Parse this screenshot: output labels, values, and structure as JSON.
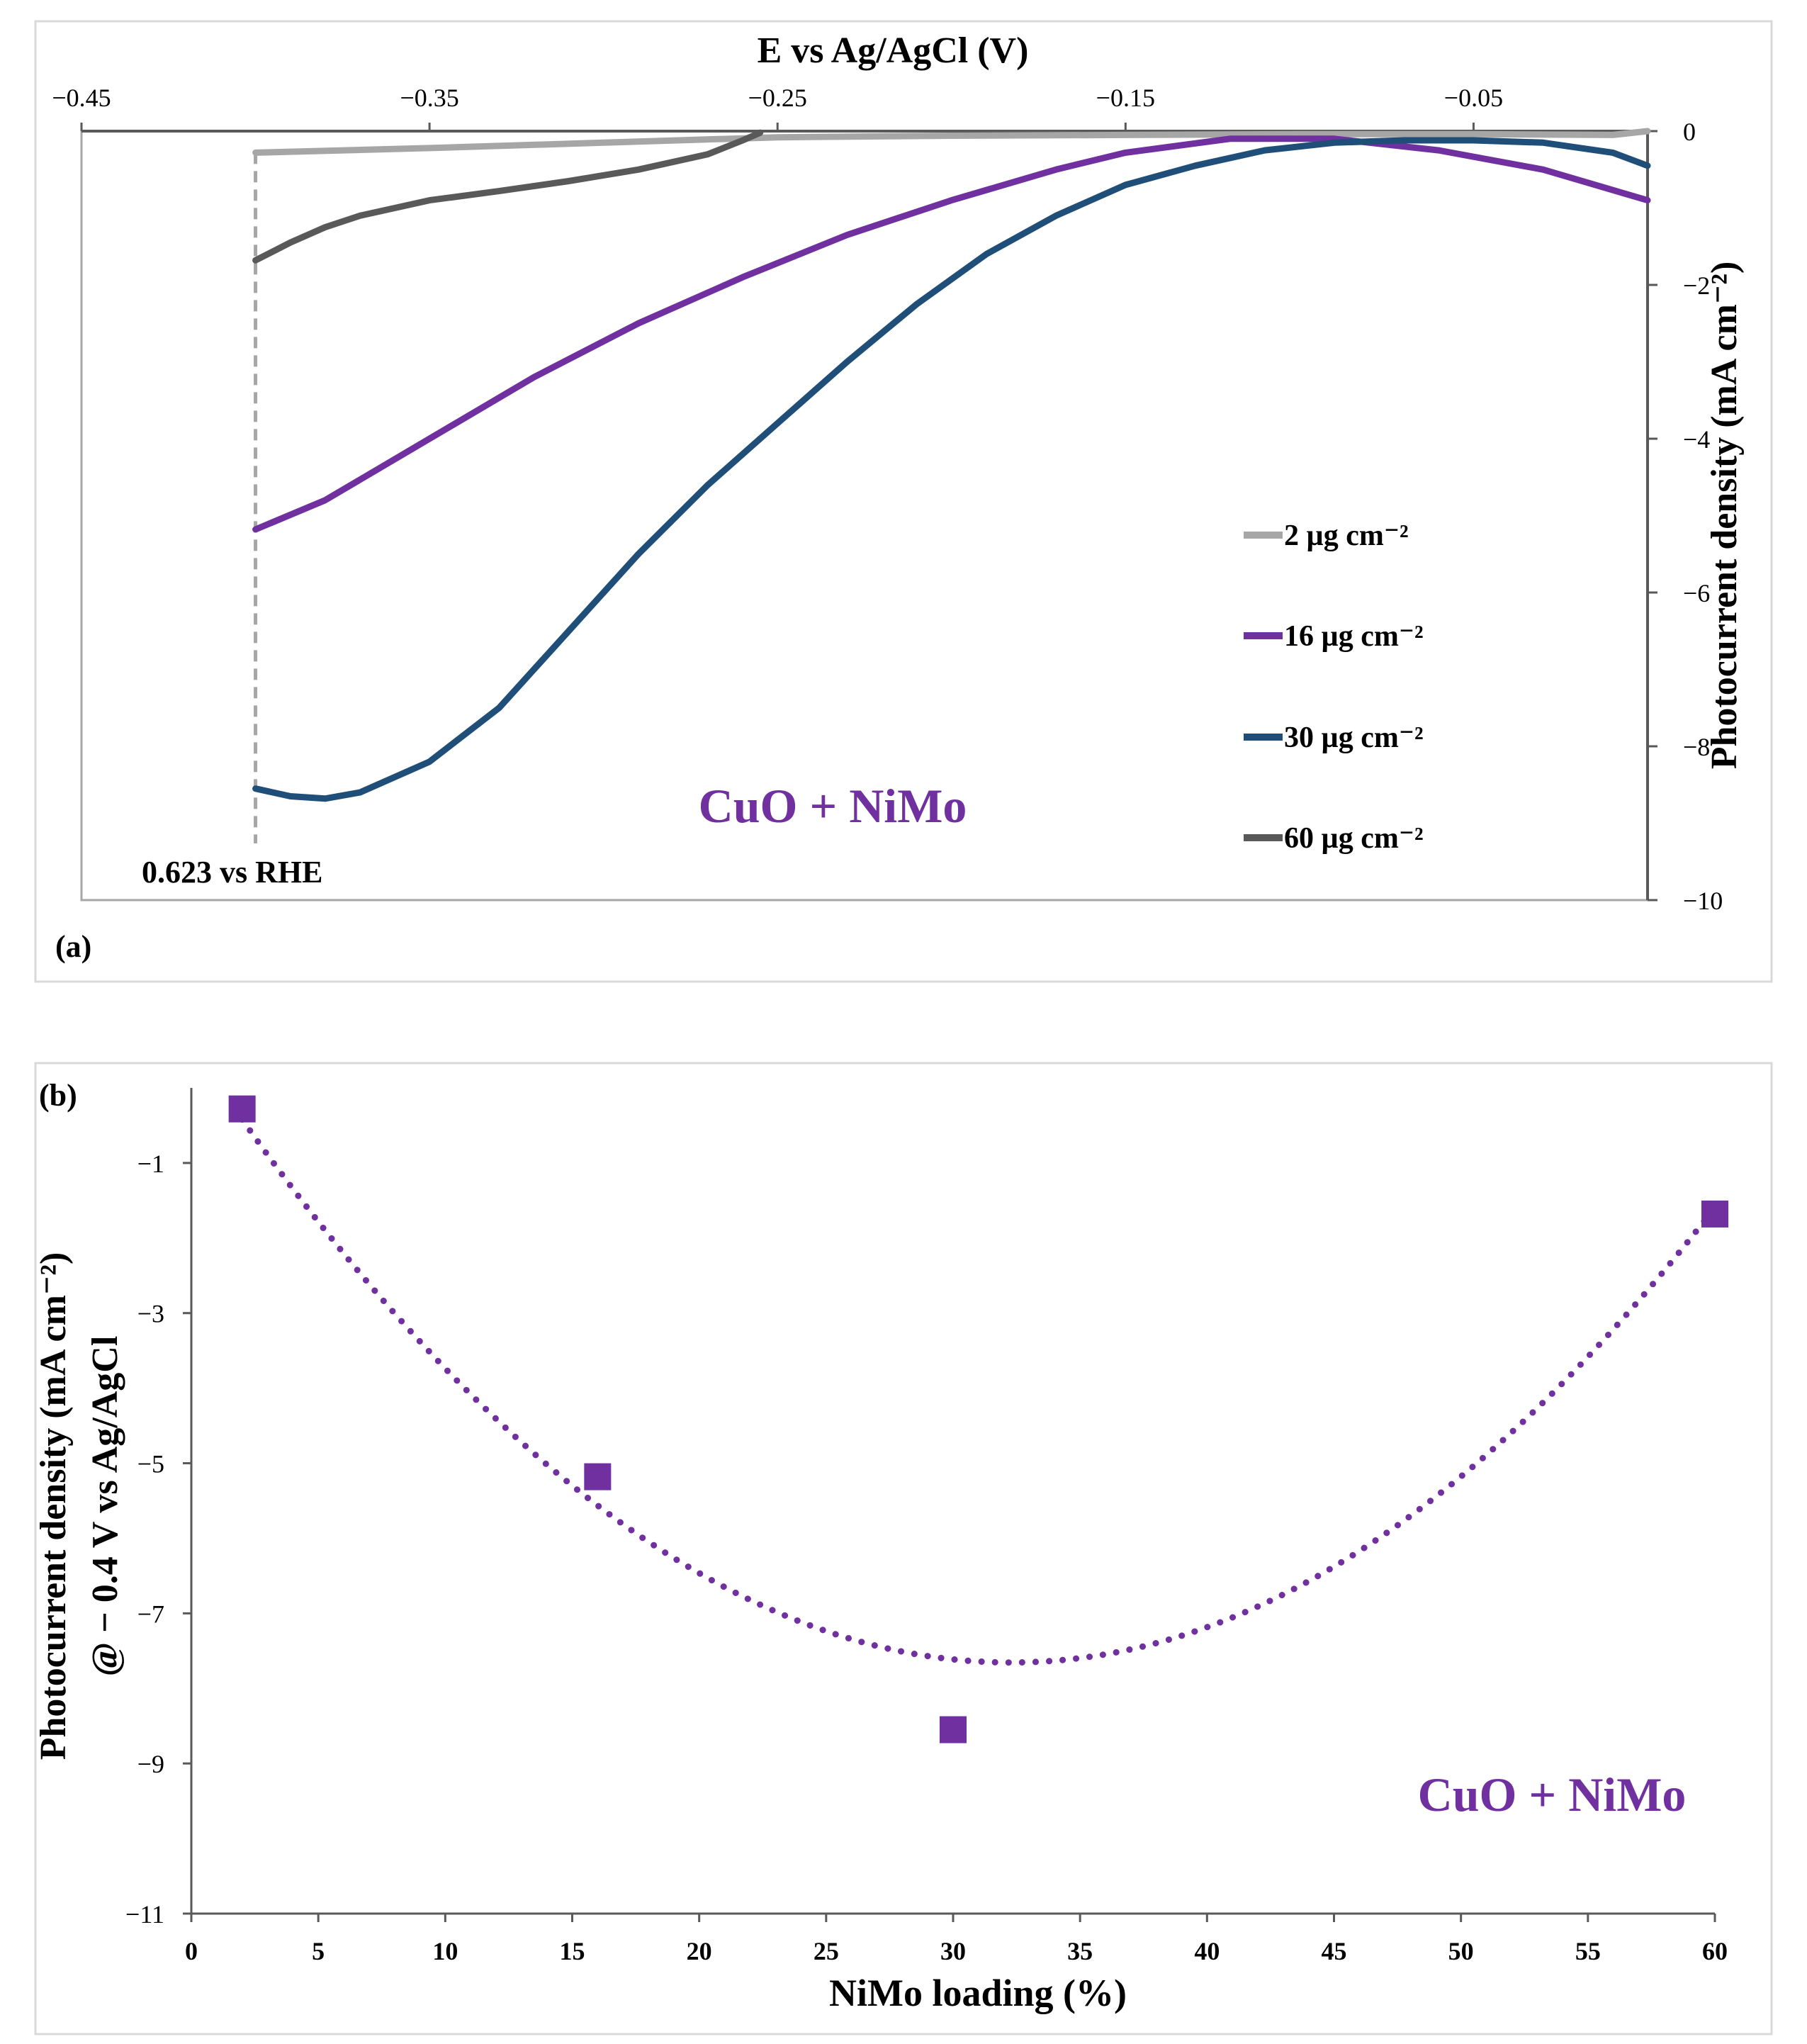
{
  "chart_data": [
    {
      "panel_label": "(a)",
      "type": "line",
      "title": "",
      "xlabel": "E vs Ag/AgCl (V)",
      "ylabel": "Photocurrent density (mA cm⁻²)",
      "xlim": [
        -0.45,
        0.0
      ],
      "ylim": [
        -10,
        0
      ],
      "x_ticks": [
        "−0.45",
        "−0.35",
        "−0.25",
        "−0.15",
        "−0.05"
      ],
      "x_tick_values": [
        -0.45,
        -0.35,
        -0.25,
        -0.15,
        -0.05
      ],
      "y_ticks": [
        "0",
        "−2",
        "−4",
        "−6",
        "−8",
        "−10"
      ],
      "y_tick_values": [
        0,
        -2,
        -4,
        -6,
        -8,
        -10
      ],
      "annotation": "CuO + NiMo",
      "annotation_color": "#7030a0",
      "vline_label": "0.623 vs RHE",
      "vline_x": -0.4,
      "legend_position": "right-middle",
      "series": [
        {
          "name": "2 µg cm⁻²",
          "color": "#a6a6a6",
          "x": [
            -0.4,
            -0.35,
            -0.3,
            -0.25,
            -0.2,
            -0.15,
            -0.1,
            -0.05,
            -0.01,
            0.0
          ],
          "y": [
            -0.28,
            -0.22,
            -0.15,
            -0.08,
            -0.06,
            -0.05,
            -0.04,
            -0.04,
            -0.05,
            0.0
          ]
        },
        {
          "name": "16 µg cm⁻²",
          "color": "#7030a0",
          "x": [
            -0.4,
            -0.38,
            -0.35,
            -0.32,
            -0.29,
            -0.26,
            -0.23,
            -0.2,
            -0.17,
            -0.15,
            -0.12,
            -0.09,
            -0.06,
            -0.03,
            0.0
          ],
          "y": [
            -5.18,
            -4.8,
            -4.0,
            -3.2,
            -2.5,
            -1.9,
            -1.35,
            -0.9,
            -0.5,
            -0.28,
            -0.1,
            -0.1,
            -0.25,
            -0.5,
            -0.9
          ]
        },
        {
          "name": "30 µg cm⁻²",
          "color": "#1f4e79",
          "x": [
            -0.4,
            -0.39,
            -0.38,
            -0.37,
            -0.35,
            -0.33,
            -0.31,
            -0.29,
            -0.27,
            -0.25,
            -0.23,
            -0.21,
            -0.19,
            -0.17,
            -0.15,
            -0.13,
            -0.11,
            -0.09,
            -0.07,
            -0.05,
            -0.03,
            -0.01,
            0.0
          ],
          "y": [
            -8.55,
            -8.65,
            -8.68,
            -8.6,
            -8.2,
            -7.5,
            -6.5,
            -5.5,
            -4.6,
            -3.8,
            -3.0,
            -2.25,
            -1.6,
            -1.1,
            -0.7,
            -0.45,
            -0.25,
            -0.15,
            -0.12,
            -0.12,
            -0.15,
            -0.28,
            -0.45
          ]
        },
        {
          "name": "60 µg cm⁻²",
          "color": "#595959",
          "x": [
            -0.4,
            -0.39,
            -0.38,
            -0.37,
            -0.36,
            -0.35,
            -0.33,
            -0.31,
            -0.29,
            -0.27,
            -0.26,
            -0.255
          ],
          "y": [
            -1.68,
            -1.45,
            -1.25,
            -1.1,
            -1.0,
            -0.9,
            -0.78,
            -0.65,
            -0.5,
            -0.3,
            -0.12,
            -0.02
          ]
        }
      ]
    },
    {
      "panel_label": "(b)",
      "type": "scatter",
      "title": "",
      "xlabel": "NiMo loading (%)",
      "ylabel_line1": "Photocurrent density (mA cm⁻²)",
      "ylabel_line2": "@ − 0.4 V vs Ag/AgCl",
      "xlim": [
        0,
        60
      ],
      "ylim": [
        -11,
        0
      ],
      "x_ticks": [
        "0",
        "5",
        "10",
        "15",
        "20",
        "25",
        "30",
        "35",
        "40",
        "45",
        "50",
        "55",
        "60"
      ],
      "x_tick_values": [
        0,
        5,
        10,
        15,
        20,
        25,
        30,
        35,
        40,
        45,
        50,
        55,
        60
      ],
      "y_ticks": [
        "−1",
        "−3",
        "−5",
        "−7",
        "−9",
        "−11"
      ],
      "y_tick_values": [
        -1,
        -3,
        -5,
        -7,
        -9,
        -11
      ],
      "annotation": "CuO + NiMo",
      "annotation_color": "#7030a0",
      "series": [
        {
          "name": "CuO + NiMo",
          "color": "#7030a0",
          "x": [
            2,
            16,
            30,
            60
          ],
          "y": [
            -0.28,
            -5.18,
            -8.55,
            -1.68
          ]
        }
      ],
      "trendline": {
        "type": "polynomial-2",
        "color": "#7030a0",
        "coefficients": [
          0.00789,
          -0.5094,
          0.5674
        ],
        "x_range": [
          2,
          60
        ]
      }
    }
  ]
}
